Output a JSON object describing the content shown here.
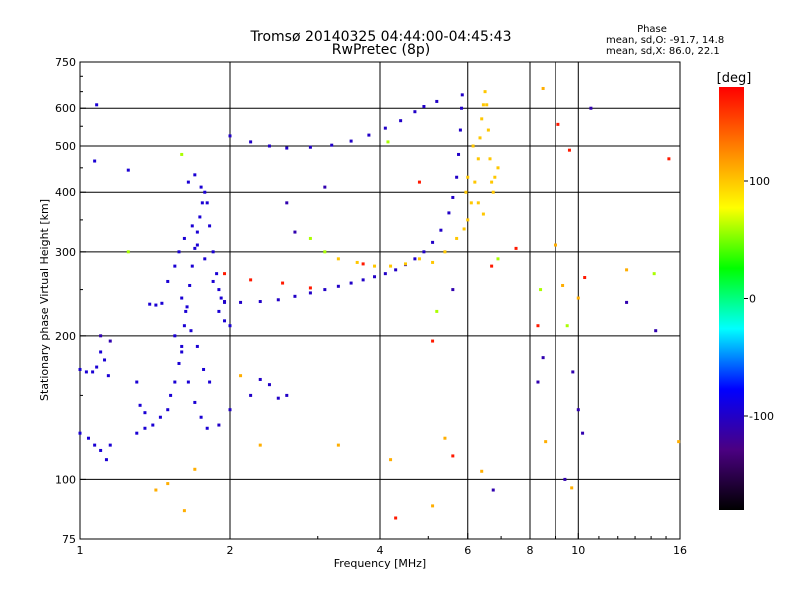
{
  "chart_data": {
    "type": "scatter",
    "title": "Tromsø 20140325 04:44:00-04:45:43",
    "subtitle": "RwPretec (8p)",
    "stats": {
      "heading": "Phase",
      "line1": "mean, sd,O: -91.7, 14.8",
      "line2": "mean, sd,X:  86.0, 22.1"
    },
    "xlabel": "Frequency [MHz]",
    "ylabel": "Stationary phase Virtual Height [km]",
    "x_scale": "log",
    "y_scale": "log",
    "xlim": [
      1,
      16
    ],
    "ylim": [
      75,
      750
    ],
    "x_ticks": [
      1,
      2,
      4,
      6,
      8,
      10,
      16
    ],
    "x_tick_labels": [
      "1",
      "2",
      "4",
      "6",
      "8",
      "10",
      "16"
    ],
    "y_ticks": [
      75,
      100,
      200,
      300,
      400,
      500,
      600,
      750
    ],
    "y_tick_labels": [
      "75",
      "100",
      "200",
      "300",
      "400",
      "500",
      "600",
      "750"
    ],
    "x_gridlines": [
      2,
      4,
      6,
      8,
      10
    ],
    "x_minor_gridlines": [
      9
    ],
    "y_gridlines": [
      100,
      200,
      300,
      400,
      500,
      600
    ],
    "grid": true,
    "colorbar": {
      "label": "[deg]",
      "min": -180,
      "max": 180,
      "ticks": [
        100,
        0,
        -100
      ],
      "tick_labels": [
        "100",
        "0",
        "-100"
      ],
      "colors": [
        "#000000",
        "#4b0082",
        "#0000ff",
        "#00ffff",
        "#00ff00",
        "#ffff00",
        "#ff8000",
        "#ff0000"
      ]
    },
    "series": [
      {
        "phase_deg": -95,
        "points": [
          [
            1.0,
            170
          ],
          [
            1.03,
            168
          ],
          [
            1.06,
            168
          ],
          [
            1.08,
            172
          ],
          [
            1.1,
            185
          ],
          [
            1.12,
            178
          ],
          [
            1.14,
            165
          ],
          [
            1.0,
            125
          ],
          [
            1.04,
            122
          ],
          [
            1.07,
            118
          ],
          [
            1.1,
            115
          ],
          [
            1.13,
            110
          ],
          [
            1.15,
            118
          ],
          [
            1.38,
            233
          ],
          [
            1.42,
            232
          ],
          [
            1.46,
            234
          ],
          [
            1.08,
            610
          ],
          [
            1.07,
            465
          ],
          [
            1.25,
            445
          ],
          [
            1.3,
            160
          ],
          [
            1.32,
            143
          ],
          [
            1.35,
            138
          ]
        ]
      },
      {
        "phase_deg": -95,
        "points": [
          [
            1.3,
            125
          ],
          [
            1.35,
            128
          ],
          [
            1.4,
            130
          ],
          [
            1.45,
            135
          ],
          [
            1.5,
            140
          ],
          [
            1.52,
            150
          ],
          [
            1.55,
            160
          ],
          [
            1.58,
            175
          ],
          [
            1.6,
            190
          ],
          [
            1.62,
            210
          ],
          [
            1.64,
            230
          ],
          [
            1.66,
            255
          ],
          [
            1.68,
            280
          ],
          [
            1.7,
            305
          ],
          [
            1.72,
            330
          ],
          [
            1.74,
            355
          ],
          [
            1.76,
            380
          ],
          [
            1.78,
            400
          ],
          [
            1.8,
            380
          ],
          [
            1.82,
            340
          ],
          [
            1.85,
            300
          ],
          [
            1.88,
            270
          ],
          [
            1.9,
            250
          ],
          [
            1.92,
            240
          ],
          [
            1.95,
            235
          ],
          [
            1.55,
            200
          ],
          [
            1.6,
            185
          ],
          [
            1.65,
            160
          ],
          [
            1.7,
            145
          ],
          [
            1.75,
            135
          ],
          [
            1.8,
            128
          ],
          [
            1.5,
            260
          ],
          [
            1.55,
            280
          ],
          [
            1.58,
            300
          ],
          [
            1.62,
            320
          ],
          [
            1.68,
            340
          ],
          [
            1.72,
            310
          ],
          [
            1.78,
            290
          ],
          [
            1.85,
            260
          ],
          [
            1.9,
            225
          ],
          [
            1.95,
            215
          ],
          [
            2.0,
            210
          ],
          [
            1.65,
            420
          ],
          [
            1.7,
            435
          ],
          [
            1.75,
            410
          ],
          [
            1.6,
            240
          ],
          [
            1.63,
            225
          ],
          [
            1.67,
            205
          ],
          [
            1.72,
            190
          ],
          [
            1.77,
            170
          ],
          [
            1.82,
            160
          ]
        ]
      },
      {
        "phase_deg": -100,
        "points": [
          [
            1.95,
            236
          ],
          [
            2.1,
            235
          ],
          [
            2.3,
            236
          ],
          [
            2.5,
            238
          ],
          [
            2.7,
            242
          ],
          [
            2.9,
            246
          ],
          [
            3.1,
            250
          ],
          [
            3.3,
            254
          ],
          [
            3.5,
            258
          ],
          [
            3.7,
            262
          ],
          [
            3.9,
            266
          ],
          [
            4.1,
            270
          ],
          [
            4.3,
            275
          ],
          [
            4.5,
            282
          ],
          [
            4.7,
            290
          ],
          [
            4.9,
            300
          ],
          [
            5.1,
            314
          ],
          [
            5.3,
            333
          ],
          [
            5.5,
            362
          ],
          [
            5.6,
            390
          ],
          [
            5.7,
            430
          ],
          [
            5.75,
            480
          ],
          [
            5.8,
            540
          ],
          [
            5.83,
            600
          ],
          [
            5.85,
            640
          ],
          [
            2.0,
            525
          ],
          [
            2.2,
            510
          ],
          [
            2.4,
            500
          ],
          [
            2.6,
            495
          ],
          [
            2.9,
            497
          ],
          [
            3.2,
            502
          ],
          [
            3.5,
            512
          ],
          [
            3.8,
            527
          ],
          [
            4.1,
            545
          ],
          [
            4.4,
            565
          ],
          [
            4.7,
            590
          ],
          [
            4.9,
            605
          ],
          [
            5.2,
            620
          ],
          [
            2.6,
            150
          ],
          [
            2.5,
            148
          ],
          [
            2.4,
            158
          ],
          [
            2.3,
            162
          ],
          [
            2.2,
            150
          ],
          [
            2.0,
            140
          ],
          [
            1.9,
            130
          ]
        ]
      },
      {
        "phase_deg": 100,
        "points": [
          [
            3.3,
            290
          ],
          [
            3.6,
            285
          ],
          [
            3.9,
            280
          ],
          [
            4.2,
            280
          ],
          [
            4.5,
            283
          ],
          [
            4.8,
            290
          ],
          [
            5.1,
            285
          ],
          [
            5.4,
            300
          ],
          [
            5.7,
            320
          ],
          [
            5.9,
            335
          ],
          [
            6.0,
            350
          ],
          [
            6.1,
            380
          ],
          [
            6.2,
            420
          ],
          [
            6.3,
            470
          ],
          [
            6.35,
            520
          ],
          [
            6.4,
            570
          ],
          [
            6.45,
            610
          ],
          [
            6.5,
            650
          ],
          [
            6.55,
            610
          ],
          [
            6.6,
            540
          ],
          [
            6.65,
            470
          ],
          [
            6.7,
            420
          ],
          [
            6.75,
            400
          ],
          [
            6.8,
            430
          ],
          [
            6.9,
            450
          ],
          [
            5.95,
            400
          ],
          [
            6.0,
            430
          ],
          [
            6.15,
            500
          ],
          [
            6.3,
            380
          ],
          [
            6.45,
            360
          ]
        ]
      },
      {
        "phase_deg": 170,
        "points": [
          [
            1.95,
            270
          ],
          [
            2.2,
            262
          ],
          [
            2.55,
            258
          ],
          [
            2.9,
            252
          ],
          [
            3.7,
            283
          ],
          [
            4.8,
            420
          ],
          [
            6.7,
            280
          ],
          [
            7.5,
            305
          ],
          [
            8.3,
            210
          ],
          [
            9.1,
            555
          ],
          [
            9.6,
            490
          ],
          [
            10.3,
            265
          ],
          [
            15.2,
            470
          ],
          [
            4.3,
            83
          ],
          [
            5.1,
            195
          ],
          [
            5.6,
            112
          ]
        ]
      },
      {
        "phase_deg": 110,
        "points": [
          [
            1.42,
            95
          ],
          [
            1.5,
            98
          ],
          [
            1.62,
            86
          ],
          [
            1.7,
            105
          ],
          [
            2.3,
            118
          ],
          [
            2.1,
            165
          ],
          [
            3.3,
            118
          ],
          [
            4.2,
            110
          ],
          [
            5.1,
            88
          ],
          [
            5.4,
            122
          ],
          [
            6.4,
            104
          ],
          [
            8.6,
            120
          ],
          [
            9.7,
            96
          ],
          [
            8.5,
            660
          ],
          [
            9.0,
            310
          ],
          [
            9.3,
            255
          ],
          [
            10.0,
            240
          ],
          [
            12.5,
            275
          ],
          [
            15.9,
            120
          ]
        ]
      },
      {
        "phase_deg": 60,
        "points": [
          [
            1.25,
            300
          ],
          [
            1.6,
            480
          ],
          [
            2.9,
            320
          ],
          [
            3.1,
            300
          ],
          [
            4.15,
            510
          ],
          [
            5.2,
            225
          ],
          [
            6.9,
            290
          ],
          [
            8.4,
            250
          ],
          [
            9.5,
            210
          ],
          [
            14.2,
            270
          ]
        ]
      },
      {
        "phase_deg": -110,
        "points": [
          [
            1.1,
            200
          ],
          [
            1.15,
            195
          ],
          [
            2.6,
            380
          ],
          [
            2.7,
            330
          ],
          [
            3.1,
            410
          ],
          [
            5.6,
            250
          ],
          [
            6.75,
            95
          ],
          [
            8.5,
            180
          ],
          [
            9.4,
            100
          ],
          [
            10.6,
            600
          ],
          [
            12.5,
            235
          ],
          [
            14.3,
            205
          ],
          [
            8.3,
            160
          ],
          [
            9.75,
            168
          ],
          [
            10.0,
            140
          ],
          [
            10.2,
            125
          ]
        ]
      }
    ]
  }
}
